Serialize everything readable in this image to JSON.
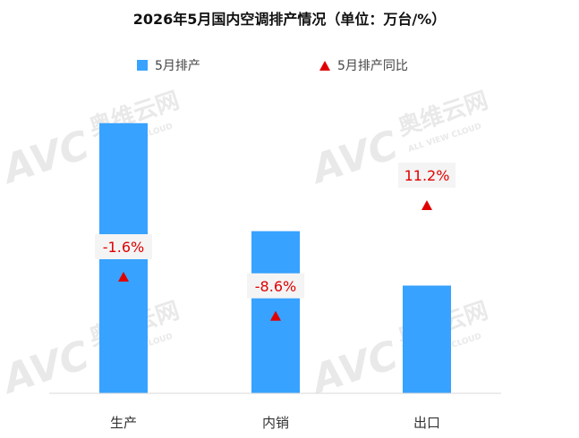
{
  "title": "2026年5月国内空调排产情况（单位：万台/%）",
  "watermark": {
    "logo": "AVC",
    "cn": "奥维云网",
    "en": "ALL VIEW CLOUD"
  },
  "legend": [
    {
      "label": "5月排产",
      "type": "bar",
      "color": "#37a2ff"
    },
    {
      "label": "5月排产同比",
      "type": "marker",
      "color": "#e00000"
    }
  ],
  "chart_data": {
    "type": "bar",
    "title": "2026年5月国内空调排产情况（单位：万台/%）",
    "categories": [
      "生产",
      "内销",
      "出口"
    ],
    "series": [
      {
        "name": "5月排产",
        "type": "bar",
        "color": "#37a2ff",
        "values": [
          1013,
          608,
          404
        ]
      },
      {
        "name": "5月排产同比",
        "type": "marker",
        "color": "#e00000",
        "values": [
          -1.6,
          -8.6,
          11.2
        ],
        "labels": [
          "-1.6%",
          "-8.6%",
          "11.2%"
        ]
      }
    ],
    "ylim": [
      0,
      1200
    ],
    "yoy_range": [
      -20,
      20
    ],
    "grid": false,
    "legend_position": "top"
  }
}
